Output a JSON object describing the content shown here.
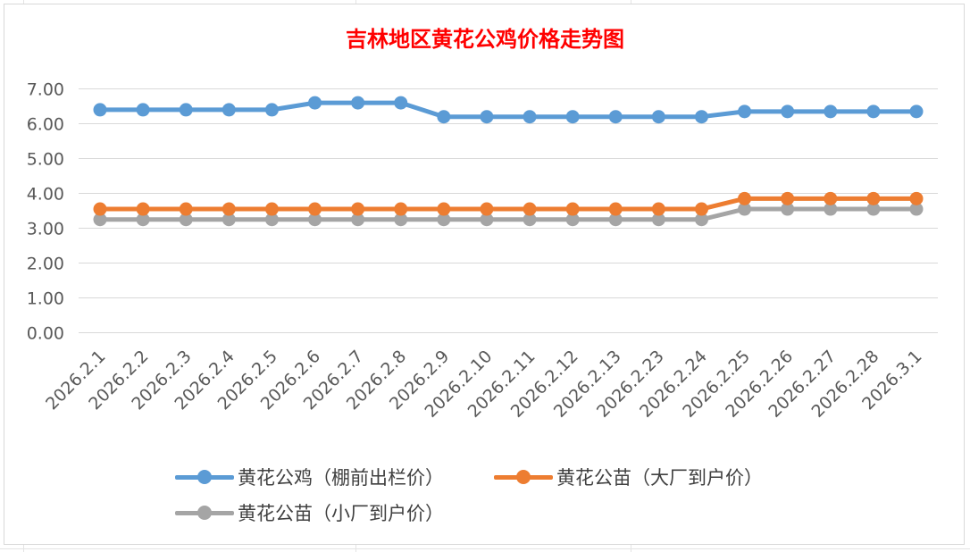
{
  "chart_data": {
    "type": "line",
    "title": "吉林地区黄花公鸡价格走势图",
    "title_color": "#ff0000",
    "categories": [
      "2026.2.1",
      "2026.2.2",
      "2026.2.3",
      "2026.2.4",
      "2026.2.5",
      "2026.2.6",
      "2026.2.7",
      "2026.2.8",
      "2026.2.9",
      "2026.2.10",
      "2026.2.11",
      "2026.2.12",
      "2026.2.13",
      "2026.2.23",
      "2026.2.24",
      "2026.2.25",
      "2026.2.26",
      "2026.2.27",
      "2026.2.28",
      "2026.3.1"
    ],
    "ylim": [
      0,
      7
    ],
    "yticks": [
      "0.00",
      "1.00",
      "2.00",
      "3.00",
      "4.00",
      "5.00",
      "6.00",
      "7.00"
    ],
    "grid": true,
    "legend_position": "bottom",
    "series": [
      {
        "name": "黄花公鸡（棚前出栏价）",
        "color": "#5b9bd5",
        "values": [
          6.4,
          6.4,
          6.4,
          6.4,
          6.4,
          6.6,
          6.6,
          6.6,
          6.2,
          6.2,
          6.2,
          6.2,
          6.2,
          6.2,
          6.2,
          6.35,
          6.35,
          6.35,
          6.35,
          6.35
        ]
      },
      {
        "name": "黄花公苗（大厂到户价）",
        "color": "#ed7d31",
        "values": [
          3.55,
          3.55,
          3.55,
          3.55,
          3.55,
          3.55,
          3.55,
          3.55,
          3.55,
          3.55,
          3.55,
          3.55,
          3.55,
          3.55,
          3.55,
          3.85,
          3.85,
          3.85,
          3.85,
          3.85
        ]
      },
      {
        "name": "黄花公苗（小厂到户价）",
        "color": "#a5a5a5",
        "values": [
          3.25,
          3.25,
          3.25,
          3.25,
          3.25,
          3.25,
          3.25,
          3.25,
          3.25,
          3.25,
          3.25,
          3.25,
          3.25,
          3.25,
          3.25,
          3.55,
          3.55,
          3.55,
          3.55,
          3.55
        ]
      }
    ]
  }
}
